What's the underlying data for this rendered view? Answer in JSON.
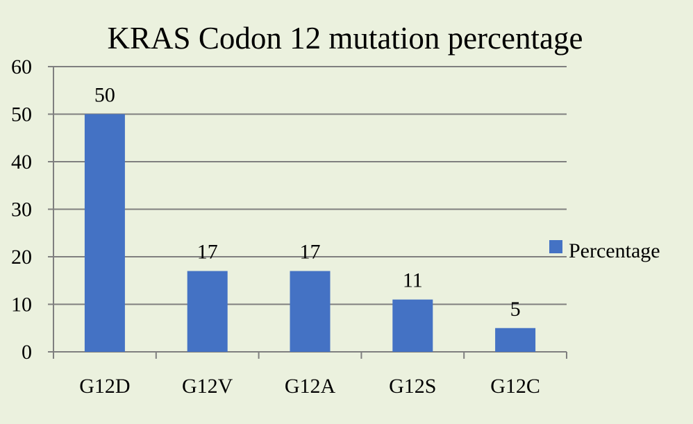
{
  "chart_data": {
    "type": "bar",
    "title": "KRAS Codon 12 mutation percentage",
    "xlabel": "",
    "ylabel": "",
    "categories": [
      "G12D",
      "G12V",
      "G12A",
      "G12S",
      "G12C"
    ],
    "series": [
      {
        "name": "Percentage",
        "values": [
          50,
          17,
          17,
          11,
          5
        ],
        "color": "#4472c4"
      }
    ],
    "data_labels": [
      "50",
      "17",
      "17",
      "11",
      "5"
    ],
    "ylim": [
      0,
      60
    ],
    "yticks": [
      0,
      10,
      20,
      30,
      40,
      50,
      60
    ],
    "ytick_labels": [
      "0",
      "10",
      "20",
      "30",
      "40",
      "50",
      "60"
    ],
    "grid": true,
    "legend_position": "right",
    "background_color": "#ebf1de",
    "gridline_color": "#7f7f7f"
  }
}
